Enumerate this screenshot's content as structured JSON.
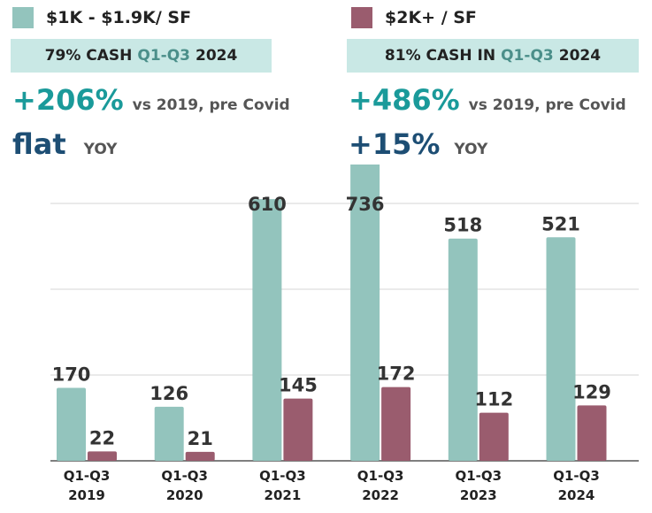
{
  "chart_data": {
    "type": "bar",
    "categories": [
      [
        "Q1-Q3",
        "2019"
      ],
      [
        "Q1-Q3",
        "2020"
      ],
      [
        "Q1-Q3",
        "2021"
      ],
      [
        "Q1-Q3",
        "2022"
      ],
      [
        "Q1-Q3",
        "2023"
      ],
      [
        "Q1-Q3",
        "2024"
      ]
    ],
    "series": [
      {
        "name": "$1K - $1.9K/ SF",
        "color": "#93c4bd",
        "values": [
          170,
          126,
          610,
          736,
          518,
          521
        ]
      },
      {
        "name": "$2K+ / SF",
        "color": "#9a5c6e",
        "values": [
          22,
          21,
          145,
          172,
          112,
          129
        ]
      }
    ],
    "ylim": [
      0,
      736
    ],
    "yticks": [
      0,
      200,
      400,
      600
    ],
    "grid": true,
    "panels": [
      {
        "box_text": "79% CASH",
        "box_highlight": "Q1-Q3",
        "box_year": "2024",
        "change": "+206%",
        "change_note": "vs 2019, pre Covid",
        "yoy": "flat",
        "yoy_label": "YOY"
      },
      {
        "box_text": "81% CASH IN",
        "box_highlight": "Q1-Q3",
        "box_year": "2024",
        "change": "+486%",
        "change_note": "vs 2019, pre Covid",
        "yoy": "+15%",
        "yoy_label": "YOY"
      }
    ]
  }
}
